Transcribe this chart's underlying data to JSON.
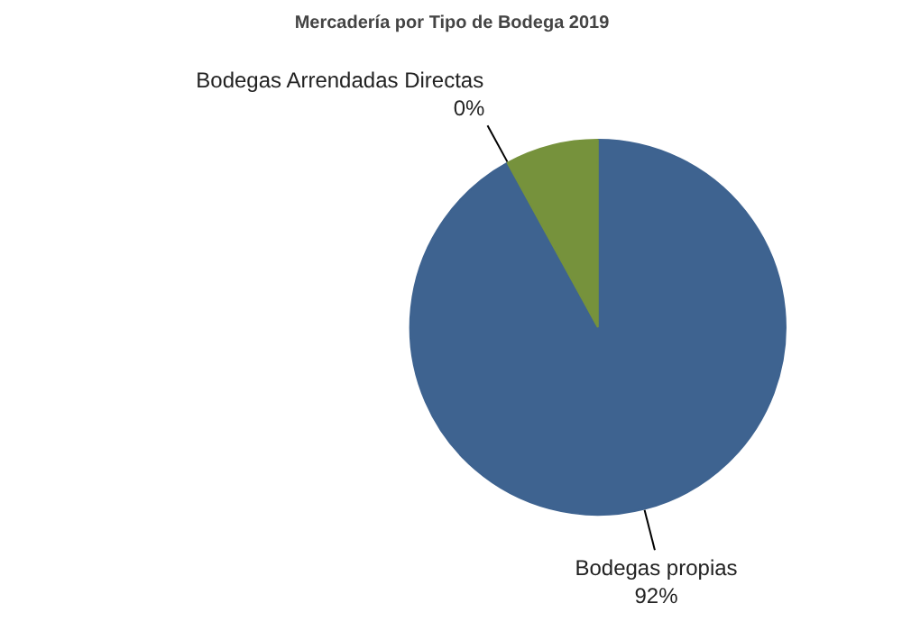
{
  "chart_data": {
    "type": "pie",
    "title": "Mercadería por Tipo de Bodega 2019",
    "categories": [
      "Bodegas propias",
      "Bodegas Arrendadas Directas",
      null
    ],
    "values": [
      92,
      0,
      8
    ],
    "colors": [
      "#3e6390",
      "#5a7a3a",
      "#76923c"
    ],
    "value_labels": [
      "92%",
      "0%",
      null
    ],
    "legend": false
  }
}
